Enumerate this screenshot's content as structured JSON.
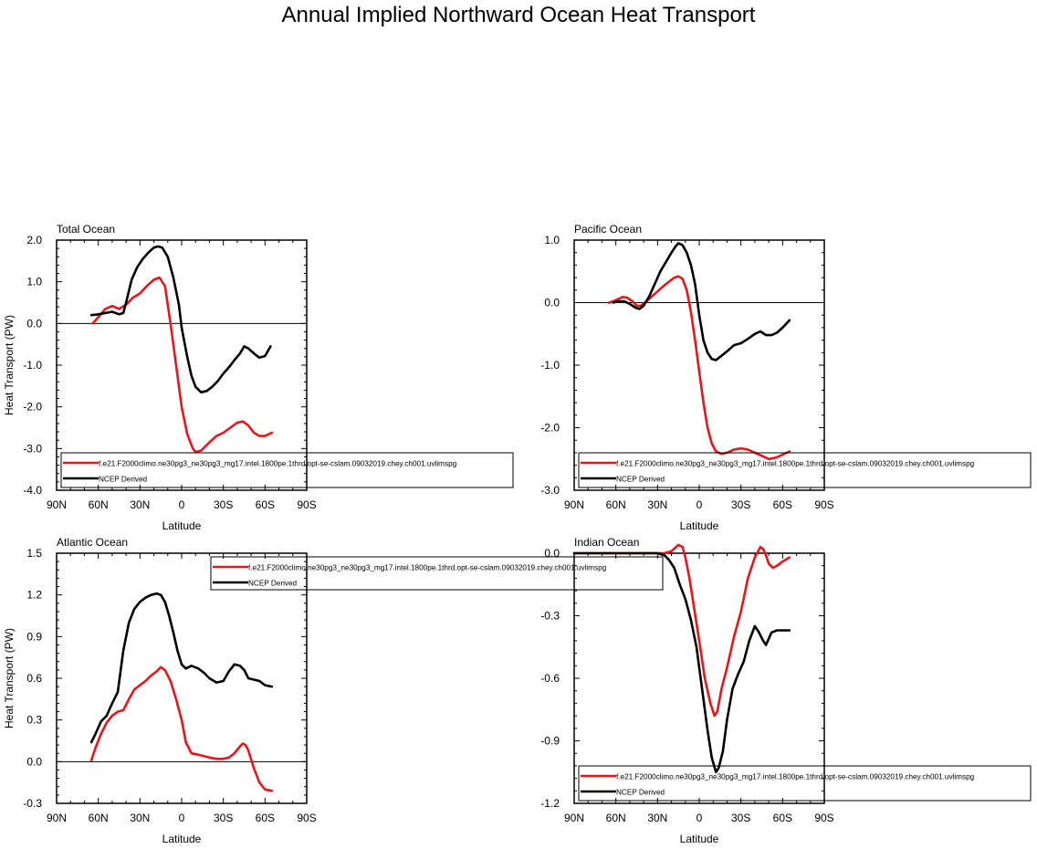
{
  "title": "Annual Implied Northward Ocean Heat Transport",
  "colors": {
    "model": "#e8151b",
    "ncep": "#000000",
    "axis": "#000000",
    "background": "#ffffff"
  },
  "chart_data": [
    {
      "type": "line",
      "title": "Total Ocean",
      "xlabel": "Latitude",
      "ylabel": "Heat Transport (PW)",
      "xlim": [
        90,
        -90
      ],
      "ylim": [
        -4.0,
        2.0
      ],
      "xticks": [
        90,
        60,
        30,
        0,
        -30,
        -60,
        -90
      ],
      "xtick_labels": [
        "90N",
        "60N",
        "30N",
        "0",
        "30S",
        "60S",
        "90S"
      ],
      "yticks": [
        -4.0,
        -3.0,
        -2.0,
        -1.0,
        0.0,
        1.0,
        2.0
      ],
      "ytick_labels": [
        "-4.0",
        "-3.0",
        "-2.0",
        "-1.0",
        "0.0",
        "1.0",
        "2.0"
      ],
      "legend_position": "bottom",
      "series": [
        {
          "name": "f.e21.F2000climo.ne30pg3_ne30pg3_mg17.intel.1800pe.1thrd.opt-se-cslam.09032019.chey.ch001.uvlimspg",
          "color": "#e8151b",
          "x": [
            64,
            60,
            55,
            50,
            45,
            40,
            35,
            30,
            25,
            20,
            16,
            12,
            8,
            4,
            0,
            -4,
            -8,
            -10,
            -14,
            -20,
            -25,
            -30,
            -35,
            -40,
            -44,
            -48,
            -52,
            -56,
            -60,
            -65
          ],
          "y": [
            0.0,
            0.15,
            0.35,
            0.42,
            0.35,
            0.45,
            0.62,
            0.72,
            0.9,
            1.05,
            1.1,
            0.9,
            0.0,
            -1.0,
            -2.0,
            -2.65,
            -3.0,
            -3.08,
            -3.05,
            -2.85,
            -2.7,
            -2.62,
            -2.5,
            -2.38,
            -2.35,
            -2.45,
            -2.62,
            -2.7,
            -2.7,
            -2.62
          ]
        },
        {
          "name": "NCEP Derived",
          "color": "#000000",
          "x": [
            65,
            60,
            55,
            50,
            45,
            42,
            40,
            36,
            32,
            28,
            24,
            20,
            17,
            14,
            10,
            6,
            2,
            0,
            -4,
            -7,
            -10,
            -14,
            -18,
            -22,
            -26,
            -30,
            -34,
            -38,
            -42,
            -45,
            -48,
            -52,
            -56,
            -60,
            -64
          ],
          "y": [
            0.2,
            0.22,
            0.25,
            0.28,
            0.22,
            0.25,
            0.5,
            1.05,
            1.35,
            1.55,
            1.7,
            1.82,
            1.85,
            1.82,
            1.6,
            1.1,
            0.45,
            -0.1,
            -0.8,
            -1.25,
            -1.52,
            -1.65,
            -1.62,
            -1.52,
            -1.38,
            -1.2,
            -1.05,
            -0.88,
            -0.72,
            -0.55,
            -0.6,
            -0.72,
            -0.82,
            -0.78,
            -0.55
          ]
        }
      ]
    },
    {
      "type": "line",
      "title": "Pacific Ocean",
      "xlabel": "Latitude",
      "ylabel": "",
      "xlim": [
        90,
        -90
      ],
      "ylim": [
        -3.0,
        1.0
      ],
      "xticks": [
        90,
        60,
        30,
        0,
        -30,
        -60,
        -90
      ],
      "xtick_labels": [
        "90N",
        "60N",
        "30N",
        "0",
        "30S",
        "60S",
        "90S"
      ],
      "yticks": [
        -3.0,
        -2.0,
        -1.0,
        0.0,
        1.0
      ],
      "ytick_labels": [
        "-3.0",
        "-2.0",
        "-1.0",
        "0.0",
        "1.0"
      ],
      "legend_position": "bottom",
      "series": [
        {
          "name": "f.e21.F2000climo.ne30pg3_ne30pg3_mg17.intel.1800pe.1thrd.opt-se-cslam.09032019.chey.ch001.uvlimspg",
          "color": "#e8151b",
          "x": [
            65,
            62,
            58,
            55,
            52,
            48,
            45,
            42,
            38,
            34,
            30,
            26,
            22,
            18,
            15,
            12,
            9,
            6,
            3,
            0,
            -3,
            -6,
            -9,
            -12,
            -16,
            -20,
            -25,
            -30,
            -35,
            -40,
            -45,
            -50,
            -55,
            -60,
            -65
          ],
          "y": [
            0.0,
            0.02,
            0.06,
            0.09,
            0.08,
            0.02,
            -0.05,
            -0.05,
            0.02,
            0.1,
            0.18,
            0.26,
            0.33,
            0.4,
            0.42,
            0.38,
            0.2,
            -0.15,
            -0.6,
            -1.1,
            -1.6,
            -2.0,
            -2.25,
            -2.38,
            -2.42,
            -2.4,
            -2.35,
            -2.33,
            -2.35,
            -2.4,
            -2.45,
            -2.5,
            -2.48,
            -2.43,
            -2.38
          ]
        },
        {
          "name": "NCEP Derived",
          "color": "#000000",
          "x": [
            62,
            58,
            54,
            50,
            46,
            43,
            40,
            36,
            32,
            28,
            24,
            20,
            17,
            15,
            12,
            9,
            6,
            3,
            0,
            -3,
            -6,
            -9,
            -12,
            -16,
            -20,
            -25,
            -30,
            -35,
            -40,
            -44,
            -48,
            -52,
            -56,
            -60,
            -65
          ],
          "y": [
            0.0,
            0.02,
            0.02,
            -0.02,
            -0.08,
            -0.1,
            -0.05,
            0.1,
            0.3,
            0.5,
            0.65,
            0.8,
            0.9,
            0.95,
            0.92,
            0.8,
            0.6,
            0.3,
            -0.2,
            -0.6,
            -0.8,
            -0.9,
            -0.92,
            -0.85,
            -0.78,
            -0.68,
            -0.65,
            -0.58,
            -0.5,
            -0.46,
            -0.52,
            -0.52,
            -0.48,
            -0.4,
            -0.28
          ]
        }
      ]
    },
    {
      "type": "line",
      "title": "Atlantic Ocean",
      "xlabel": "Latitude",
      "ylabel": "Heat Transport (PW)",
      "xlim": [
        90,
        -90
      ],
      "ylim": [
        -0.3,
        1.5
      ],
      "xticks": [
        90,
        60,
        30,
        0,
        -30,
        -60,
        -90
      ],
      "xtick_labels": [
        "90N",
        "60N",
        "30N",
        "0",
        "30S",
        "60S",
        "90S"
      ],
      "yticks": [
        -0.3,
        0.0,
        0.3,
        0.6,
        0.9,
        1.2,
        1.5
      ],
      "ytick_labels": [
        "-0.3",
        "0.0",
        "0.3",
        "0.6",
        "0.9",
        "1.2",
        "1.5"
      ],
      "legend_position": "top",
      "series": [
        {
          "name": "f.e21.F2000climo.ne30pg3_ne30pg3_mg17.intel.1800pe.1thrd.opt-se-cslam.09032019.chey.ch001.uvlimspg",
          "color": "#e8151b",
          "x": [
            65,
            62,
            58,
            54,
            50,
            46,
            42,
            38,
            34,
            30,
            26,
            22,
            18,
            15,
            12,
            8,
            4,
            0,
            -3,
            -7,
            -12,
            -16,
            -20,
            -25,
            -30,
            -34,
            -38,
            -42,
            -44,
            -46,
            -48,
            -52,
            -56,
            -60,
            -65
          ],
          "y": [
            0.01,
            0.1,
            0.2,
            0.28,
            0.33,
            0.36,
            0.37,
            0.45,
            0.52,
            0.55,
            0.58,
            0.62,
            0.65,
            0.68,
            0.66,
            0.58,
            0.45,
            0.3,
            0.14,
            0.06,
            0.05,
            0.04,
            0.03,
            0.02,
            0.02,
            0.03,
            0.06,
            0.11,
            0.13,
            0.12,
            0.08,
            -0.05,
            -0.15,
            -0.2,
            -0.21
          ]
        },
        {
          "name": "NCEP Derived",
          "color": "#000000",
          "x": [
            65,
            62,
            58,
            54,
            50,
            46,
            42,
            38,
            34,
            30,
            26,
            22,
            18,
            15,
            12,
            9,
            6,
            3,
            0,
            -3,
            -7,
            -12,
            -16,
            -20,
            -25,
            -30,
            -34,
            -38,
            -42,
            -45,
            -48,
            -52,
            -56,
            -60,
            -65
          ],
          "y": [
            0.14,
            0.2,
            0.29,
            0.33,
            0.42,
            0.5,
            0.8,
            1.0,
            1.1,
            1.15,
            1.18,
            1.2,
            1.21,
            1.2,
            1.15,
            1.05,
            0.93,
            0.8,
            0.7,
            0.67,
            0.69,
            0.67,
            0.64,
            0.6,
            0.57,
            0.58,
            0.65,
            0.7,
            0.69,
            0.66,
            0.6,
            0.59,
            0.58,
            0.55,
            0.54
          ]
        }
      ]
    },
    {
      "type": "line",
      "title": "Indian Ocean",
      "xlabel": "Latitude",
      "ylabel": "",
      "xlim": [
        90,
        -90
      ],
      "ylim": [
        -1.2,
        0.0
      ],
      "xticks": [
        90,
        60,
        30,
        0,
        -30,
        -60,
        -90
      ],
      "xtick_labels": [
        "90N",
        "60N",
        "30N",
        "0",
        "30S",
        "60S",
        "90S"
      ],
      "yticks": [
        -1.2,
        -0.9,
        -0.6,
        -0.3,
        0.0
      ],
      "ytick_labels": [
        "-1.2",
        "-0.9",
        "-0.6",
        "-0.3",
        "0.0"
      ],
      "legend_position": "bottom",
      "series": [
        {
          "name": "f.e21.F2000climo.ne30pg3_ne30pg3_mg17.intel.1800pe.1thrd.opt-se-cslam.09032019.chey.ch001.uvlimspg",
          "color": "#e8151b",
          "x": [
            90,
            60,
            30,
            25,
            20,
            15,
            12,
            10,
            7,
            4,
            0,
            -4,
            -8,
            -11,
            -13,
            -16,
            -20,
            -25,
            -30,
            -35,
            -40,
            -44,
            -46,
            -48,
            -50,
            -53,
            -56,
            -60,
            -65
          ],
          "y": [
            0.0,
            0.0,
            0.0,
            0.0,
            0.01,
            0.04,
            0.03,
            -0.02,
            -0.12,
            -0.25,
            -0.42,
            -0.6,
            -0.72,
            -0.78,
            -0.76,
            -0.65,
            -0.55,
            -0.4,
            -0.28,
            -0.12,
            -0.02,
            0.03,
            0.02,
            -0.01,
            -0.05,
            -0.07,
            -0.06,
            -0.04,
            -0.02
          ]
        },
        {
          "name": "NCEP Derived",
          "color": "#000000",
          "x": [
            90,
            60,
            30,
            25,
            22,
            18,
            14,
            10,
            6,
            2,
            0,
            -3,
            -6,
            -9,
            -12,
            -14,
            -17,
            -20,
            -24,
            -28,
            -32,
            -36,
            -40,
            -43,
            -46,
            -48,
            -52,
            -56,
            -60,
            -65
          ],
          "y": [
            0.0,
            0.0,
            0.0,
            -0.01,
            -0.03,
            -0.07,
            -0.15,
            -0.22,
            -0.32,
            -0.45,
            -0.55,
            -0.7,
            -0.85,
            -0.98,
            -1.05,
            -1.03,
            -0.95,
            -0.8,
            -0.65,
            -0.58,
            -0.52,
            -0.42,
            -0.35,
            -0.38,
            -0.42,
            -0.44,
            -0.38,
            -0.37,
            -0.37,
            -0.37
          ]
        }
      ]
    }
  ]
}
